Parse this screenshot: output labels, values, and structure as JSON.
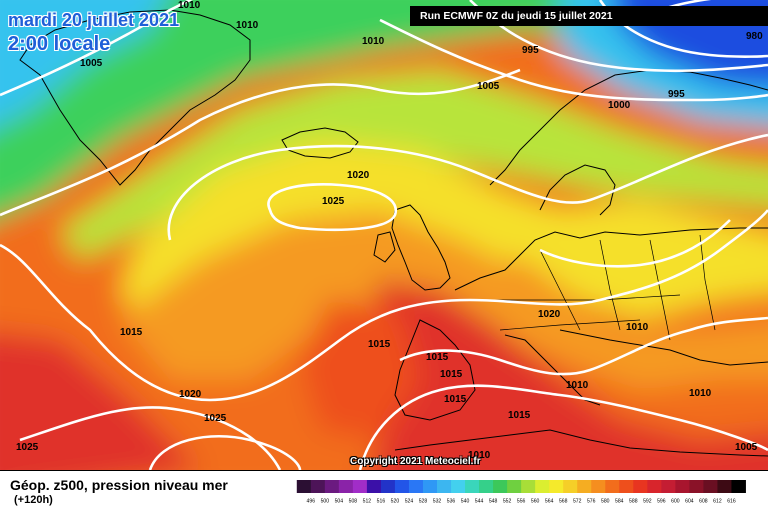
{
  "header": {
    "date_line": "mardi 20 juillet 2021",
    "time_line": "2:00 locale",
    "run_info": "Run ECMWF 0Z du jeudi 15 juillet 2021"
  },
  "footer": {
    "title": "Géop. z500, pression niveau mer",
    "subtitle": "(+120h)",
    "copyright": "Copyright 2021 Meteociel.fr"
  },
  "isobar_labels": [
    "1010",
    "1010",
    "1010",
    "1005",
    "995",
    "980",
    "1005",
    "995",
    "1000",
    "1020",
    "1025",
    "1015",
    "1015",
    "1015",
    "1015",
    "1015",
    "1020",
    "1010",
    "1010",
    "1010",
    "1020",
    "1025",
    "1015",
    "1010",
    "1025",
    "1005"
  ],
  "legend": {
    "values": [
      "496",
      "500",
      "504",
      "508",
      "512",
      "516",
      "520",
      "524",
      "528",
      "532",
      "536",
      "540",
      "544",
      "548",
      "552",
      "556",
      "560",
      "564",
      "568",
      "572",
      "576",
      "580",
      "584",
      "588",
      "592",
      "596",
      "600",
      "604",
      "608",
      "612",
      "616"
    ],
    "colors": [
      "#2b0f33",
      "#4d1458",
      "#6b1a80",
      "#8a23a8",
      "#a12dc8",
      "#3b10a8",
      "#2233c8",
      "#2255e8",
      "#2a77f5",
      "#2f98f5",
      "#3cb6f0",
      "#43d0ee",
      "#3ad6bb",
      "#35d08a",
      "#3cc85a",
      "#6fd040",
      "#a8de38",
      "#dbee30",
      "#f5ea2b",
      "#f5cf28",
      "#f5ad22",
      "#f58e1f",
      "#f26d1c",
      "#ee4f1c",
      "#e83520",
      "#d8252c",
      "#c41d33",
      "#a8152e",
      "#8a1228",
      "#6a0f22",
      "#3d0a14",
      "#000000"
    ]
  },
  "map_colors": {
    "blue": "#1e4ee0",
    "cyan": "#35c3ee",
    "green": "#3cd05c",
    "yellow_green": "#b8e43a",
    "yellow": "#f5e02b",
    "orange": "#f59a22",
    "dark_orange": "#ee6a1e",
    "red": "#e0302a",
    "isobar": "#ffffff",
    "land_outline": "#000000"
  }
}
